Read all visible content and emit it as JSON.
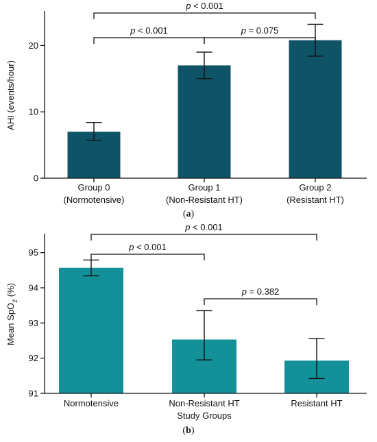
{
  "chart_data": [
    {
      "type": "bar",
      "panel_label": "(a)",
      "categories": [
        [
          "Group 0",
          "(Normotensive)"
        ],
        [
          "Group 1",
          "(Non-Resistant HT)"
        ],
        [
          "Group 2",
          "(Resistant HT)"
        ]
      ],
      "values": [
        7.0,
        17.0,
        20.8
      ],
      "errors": [
        [
          5.7,
          8.4
        ],
        [
          15.0,
          19.0
        ],
        [
          18.4,
          23.2
        ]
      ],
      "ylabel": "AHI (events/hour)",
      "xlabel": "",
      "ylim": [
        0,
        25
      ],
      "yticks": [
        0,
        10,
        20
      ],
      "bar_color": "#0f5466",
      "significance": [
        {
          "from": 0,
          "to": 2,
          "p_symbol": "p",
          "op": " < ",
          "value": "0.001"
        },
        {
          "from": 0,
          "to": 1,
          "p_symbol": "p",
          "op": " < ",
          "value": "0.001"
        },
        {
          "from": 1,
          "to": 2,
          "p_symbol": "p",
          "op": " = ",
          "value": "0.075"
        }
      ]
    },
    {
      "type": "bar",
      "panel_label": "(b)",
      "categories": [
        [
          "Normotensive"
        ],
        [
          "Non-Resistant HT"
        ],
        [
          "Resistant HT"
        ]
      ],
      "values": [
        94.57,
        92.53,
        91.93
      ],
      "errors": [
        [
          94.34,
          94.79
        ],
        [
          91.95,
          93.35
        ],
        [
          91.42,
          92.56
        ]
      ],
      "ylabel_parts": [
        "Mean SpO",
        "2",
        " (%)"
      ],
      "xlabel": "Study Groups",
      "ylim": [
        91,
        95.5
      ],
      "yticks": [
        91,
        92,
        93,
        94,
        95
      ],
      "bar_color": "#139098",
      "significance": [
        {
          "from": 0,
          "to": 2,
          "p_symbol": "p",
          "op": " < ",
          "value": "0.001"
        },
        {
          "from": 0,
          "to": 1,
          "p_symbol": "p",
          "op": " < ",
          "value": "0.001"
        },
        {
          "from": 1,
          "to": 2,
          "p_symbol": "p",
          "op": " = ",
          "value": "0.382"
        }
      ]
    }
  ]
}
